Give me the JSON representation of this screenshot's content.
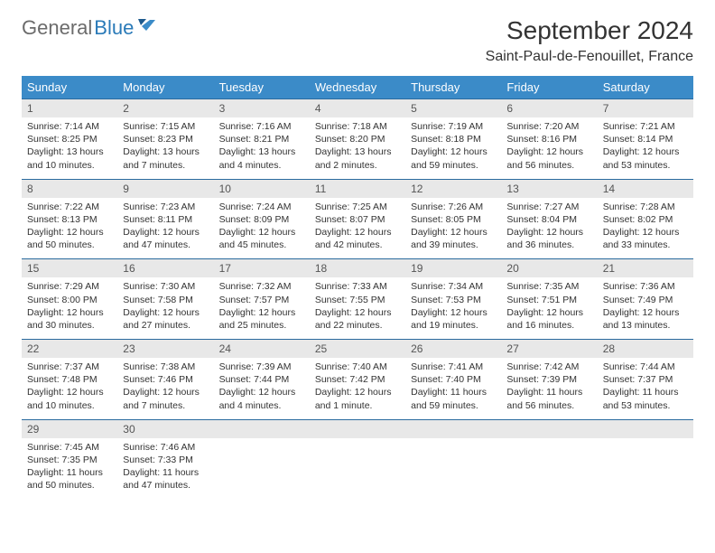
{
  "logo": {
    "gray": "General",
    "blue": "Blue"
  },
  "title": "September 2024",
  "location": "Saint-Paul-de-Fenouillet, France",
  "colors": {
    "header_bg": "#3b8bc8",
    "header_text": "#ffffff",
    "daynum_bg": "#e8e8e8",
    "row_border": "#2a6a9e",
    "logo_gray": "#6b6b6b",
    "logo_blue": "#2a7ab8",
    "body_text": "#333333"
  },
  "weekdays": [
    "Sunday",
    "Monday",
    "Tuesday",
    "Wednesday",
    "Thursday",
    "Friday",
    "Saturday"
  ],
  "days": [
    {
      "n": 1,
      "sunrise": "7:14 AM",
      "sunset": "8:25 PM",
      "daylight": "13 hours and 10 minutes."
    },
    {
      "n": 2,
      "sunrise": "7:15 AM",
      "sunset": "8:23 PM",
      "daylight": "13 hours and 7 minutes."
    },
    {
      "n": 3,
      "sunrise": "7:16 AM",
      "sunset": "8:21 PM",
      "daylight": "13 hours and 4 minutes."
    },
    {
      "n": 4,
      "sunrise": "7:18 AM",
      "sunset": "8:20 PM",
      "daylight": "13 hours and 2 minutes."
    },
    {
      "n": 5,
      "sunrise": "7:19 AM",
      "sunset": "8:18 PM",
      "daylight": "12 hours and 59 minutes."
    },
    {
      "n": 6,
      "sunrise": "7:20 AM",
      "sunset": "8:16 PM",
      "daylight": "12 hours and 56 minutes."
    },
    {
      "n": 7,
      "sunrise": "7:21 AM",
      "sunset": "8:14 PM",
      "daylight": "12 hours and 53 minutes."
    },
    {
      "n": 8,
      "sunrise": "7:22 AM",
      "sunset": "8:13 PM",
      "daylight": "12 hours and 50 minutes."
    },
    {
      "n": 9,
      "sunrise": "7:23 AM",
      "sunset": "8:11 PM",
      "daylight": "12 hours and 47 minutes."
    },
    {
      "n": 10,
      "sunrise": "7:24 AM",
      "sunset": "8:09 PM",
      "daylight": "12 hours and 45 minutes."
    },
    {
      "n": 11,
      "sunrise": "7:25 AM",
      "sunset": "8:07 PM",
      "daylight": "12 hours and 42 minutes."
    },
    {
      "n": 12,
      "sunrise": "7:26 AM",
      "sunset": "8:05 PM",
      "daylight": "12 hours and 39 minutes."
    },
    {
      "n": 13,
      "sunrise": "7:27 AM",
      "sunset": "8:04 PM",
      "daylight": "12 hours and 36 minutes."
    },
    {
      "n": 14,
      "sunrise": "7:28 AM",
      "sunset": "8:02 PM",
      "daylight": "12 hours and 33 minutes."
    },
    {
      "n": 15,
      "sunrise": "7:29 AM",
      "sunset": "8:00 PM",
      "daylight": "12 hours and 30 minutes."
    },
    {
      "n": 16,
      "sunrise": "7:30 AM",
      "sunset": "7:58 PM",
      "daylight": "12 hours and 27 minutes."
    },
    {
      "n": 17,
      "sunrise": "7:32 AM",
      "sunset": "7:57 PM",
      "daylight": "12 hours and 25 minutes."
    },
    {
      "n": 18,
      "sunrise": "7:33 AM",
      "sunset": "7:55 PM",
      "daylight": "12 hours and 22 minutes."
    },
    {
      "n": 19,
      "sunrise": "7:34 AM",
      "sunset": "7:53 PM",
      "daylight": "12 hours and 19 minutes."
    },
    {
      "n": 20,
      "sunrise": "7:35 AM",
      "sunset": "7:51 PM",
      "daylight": "12 hours and 16 minutes."
    },
    {
      "n": 21,
      "sunrise": "7:36 AM",
      "sunset": "7:49 PM",
      "daylight": "12 hours and 13 minutes."
    },
    {
      "n": 22,
      "sunrise": "7:37 AM",
      "sunset": "7:48 PM",
      "daylight": "12 hours and 10 minutes."
    },
    {
      "n": 23,
      "sunrise": "7:38 AM",
      "sunset": "7:46 PM",
      "daylight": "12 hours and 7 minutes."
    },
    {
      "n": 24,
      "sunrise": "7:39 AM",
      "sunset": "7:44 PM",
      "daylight": "12 hours and 4 minutes."
    },
    {
      "n": 25,
      "sunrise": "7:40 AM",
      "sunset": "7:42 PM",
      "daylight": "12 hours and 1 minute."
    },
    {
      "n": 26,
      "sunrise": "7:41 AM",
      "sunset": "7:40 PM",
      "daylight": "11 hours and 59 minutes."
    },
    {
      "n": 27,
      "sunrise": "7:42 AM",
      "sunset": "7:39 PM",
      "daylight": "11 hours and 56 minutes."
    },
    {
      "n": 28,
      "sunrise": "7:44 AM",
      "sunset": "7:37 PM",
      "daylight": "11 hours and 53 minutes."
    },
    {
      "n": 29,
      "sunrise": "7:45 AM",
      "sunset": "7:35 PM",
      "daylight": "11 hours and 50 minutes."
    },
    {
      "n": 30,
      "sunrise": "7:46 AM",
      "sunset": "7:33 PM",
      "daylight": "11 hours and 47 minutes."
    }
  ],
  "labels": {
    "sunrise": "Sunrise: ",
    "sunset": "Sunset: ",
    "daylight": "Daylight: "
  },
  "layout": {
    "first_weekday_index": 0,
    "weeks": 5,
    "cols": 7
  }
}
